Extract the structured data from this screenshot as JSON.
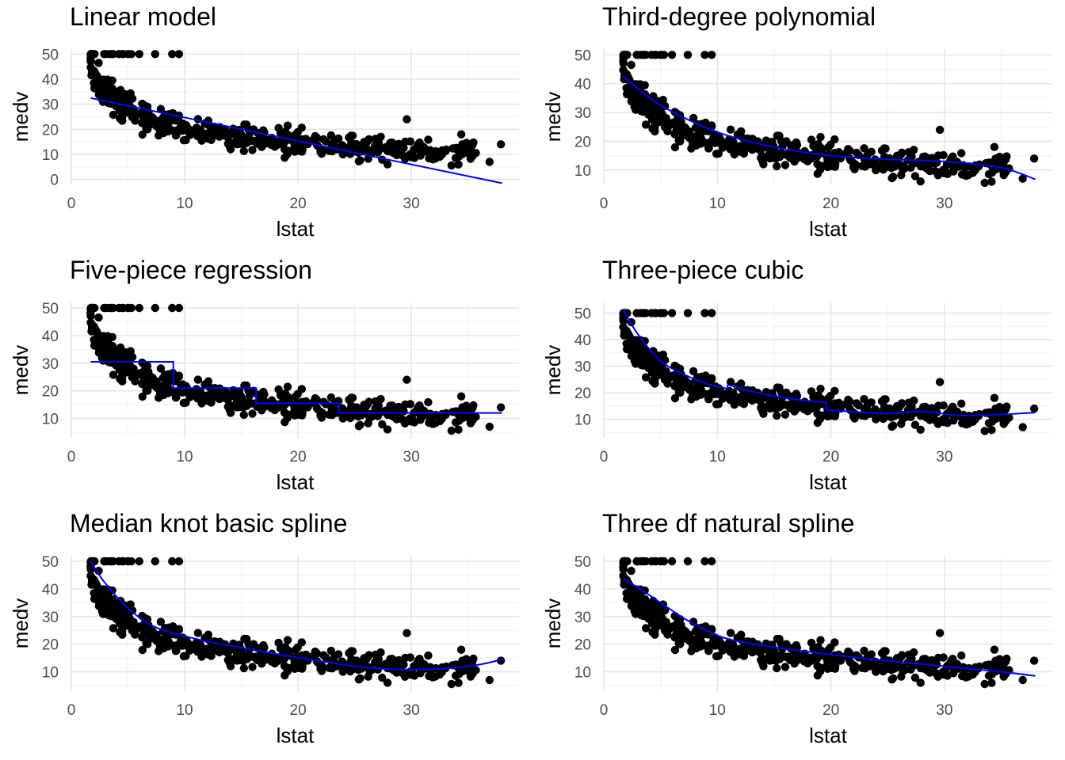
{
  "colors": {
    "points": "#000000",
    "fit_line": "#0000ff",
    "grid": "#ebebeb",
    "background": "#ffffff"
  },
  "chart_data": [
    {
      "type": "scatter",
      "title": "Linear model",
      "xlabel": "lstat",
      "ylabel": "medv",
      "xlim": [
        0,
        39.5
      ],
      "ylim": [
        -2,
        52
      ],
      "xticks": [
        0,
        10,
        20,
        30
      ],
      "yticks": [
        0,
        10,
        20,
        30,
        40,
        50
      ],
      "xtick_labels": [
        "0",
        "10",
        "20",
        "30"
      ],
      "ytick_labels": [
        "0",
        "10",
        "20",
        "30",
        "40",
        "50"
      ],
      "grid": true,
      "fit": {
        "kind": "linear",
        "x": [
          1.7,
          38
        ],
        "y": [
          32.5,
          -1.5
        ]
      }
    },
    {
      "type": "scatter",
      "title": "Third-degree polynomial",
      "xlabel": "lstat",
      "ylabel": "medv",
      "xlim": [
        0,
        39.5
      ],
      "ylim": [
        5,
        52
      ],
      "xticks": [
        0,
        10,
        20,
        30
      ],
      "yticks": [
        10,
        20,
        30,
        40,
        50
      ],
      "xtick_labels": [
        "0",
        "10",
        "20",
        "30"
      ],
      "ytick_labels": [
        "10",
        "20",
        "30",
        "40",
        "50"
      ],
      "grid": true,
      "fit": {
        "kind": "poly3",
        "x": [
          1.7,
          5,
          10,
          15,
          20,
          25,
          30,
          35,
          38
        ],
        "y": [
          42.5,
          32.5,
          23.2,
          18.0,
          15.0,
          13.7,
          13.0,
          10.8,
          6.8
        ]
      }
    },
    {
      "type": "scatter",
      "title": "Five-piece regression",
      "xlabel": "lstat",
      "ylabel": "medv",
      "xlim": [
        0,
        39.5
      ],
      "ylim": [
        3,
        52
      ],
      "xticks": [
        0,
        10,
        20,
        30
      ],
      "yticks": [
        10,
        20,
        30,
        40,
        50
      ],
      "xtick_labels": [
        "0",
        "10",
        "20",
        "30"
      ],
      "ytick_labels": [
        "10",
        "20",
        "30",
        "40",
        "50"
      ],
      "grid": true,
      "fit": {
        "kind": "step",
        "x": [
          1.7,
          9.0,
          9.0,
          16.3,
          16.3,
          23.6,
          23.6,
          38
        ],
        "y": [
          30.5,
          30.5,
          21.0,
          21.0,
          15.5,
          15.5,
          12.0,
          12.0
        ]
      }
    },
    {
      "type": "scatter",
      "title": "Three-piece cubic",
      "xlabel": "lstat",
      "ylabel": "medv",
      "xlim": [
        0,
        39.5
      ],
      "ylim": [
        3,
        54
      ],
      "xticks": [
        0,
        10,
        20,
        30
      ],
      "yticks": [
        10,
        20,
        30,
        40,
        50
      ],
      "xtick_labels": [
        "0",
        "10",
        "20",
        "30"
      ],
      "ytick_labels": [
        "10",
        "20",
        "30",
        "40",
        "50"
      ],
      "grid": true,
      "fit": {
        "kind": "piecewise-cubic",
        "x": [
          1.7,
          3,
          5,
          7,
          9,
          10.9,
          10.9,
          13,
          16,
          19.6,
          19.6,
          22,
          25,
          28,
          31,
          34,
          38
        ],
        "y": [
          51.5,
          42,
          32,
          27,
          23.5,
          21.5,
          23,
          20.5,
          18,
          16.2,
          13.5,
          12.8,
          12.2,
          13,
          11.5,
          11.6,
          12.5
        ]
      }
    },
    {
      "type": "scatter",
      "title": "Median knot basic spline",
      "xlabel": "lstat",
      "ylabel": "medv",
      "xlim": [
        0,
        39.5
      ],
      "ylim": [
        3,
        52
      ],
      "xticks": [
        0,
        10,
        20,
        30
      ],
      "yticks": [
        10,
        20,
        30,
        40,
        50
      ],
      "xtick_labels": [
        "0",
        "10",
        "20",
        "30"
      ],
      "ytick_labels": [
        "10",
        "20",
        "30",
        "40",
        "50"
      ],
      "grid": true,
      "fit": {
        "kind": "bs",
        "x": [
          1.7,
          3,
          5,
          7,
          9,
          12,
          15,
          18,
          21,
          24,
          27,
          30,
          33,
          36,
          38
        ],
        "y": [
          50,
          42,
          33,
          27,
          24,
          21,
          18.7,
          16.5,
          14.5,
          12.6,
          11.2,
          10.8,
          11.2,
          12.6,
          14.5
        ]
      }
    },
    {
      "type": "scatter",
      "title": "Three df natural spline",
      "xlabel": "lstat",
      "ylabel": "medv",
      "xlim": [
        0,
        39.5
      ],
      "ylim": [
        3,
        52
      ],
      "xticks": [
        0,
        10,
        20,
        30
      ],
      "yticks": [
        10,
        20,
        30,
        40,
        50
      ],
      "xtick_labels": [
        "0",
        "10",
        "20",
        "30"
      ],
      "ytick_labels": [
        "10",
        "20",
        "30",
        "40",
        "50"
      ],
      "grid": true,
      "fit": {
        "kind": "ns",
        "x": [
          1.7,
          3,
          5,
          7,
          9,
          11,
          14,
          17,
          20,
          24,
          28,
          32,
          35,
          38
        ],
        "y": [
          43.5,
          40.5,
          35,
          29.5,
          25,
          21.8,
          19.5,
          17.8,
          16.2,
          14.4,
          12.8,
          11.2,
          10.0,
          8.5
        ]
      }
    }
  ]
}
